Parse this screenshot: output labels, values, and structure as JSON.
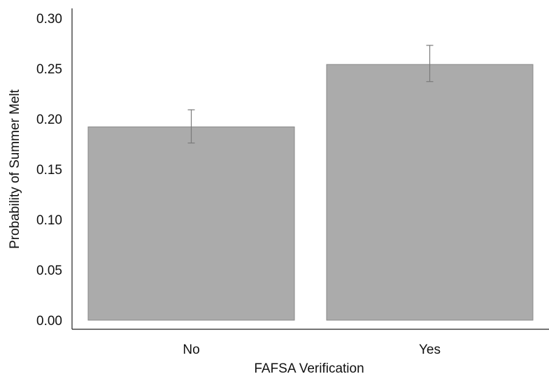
{
  "chart_data": {
    "type": "bar",
    "title": "",
    "xlabel": "FAFSA Verification",
    "ylabel": "Probability of Summer Melt",
    "categories": [
      "No",
      "Yes"
    ],
    "values": [
      0.192,
      0.254
    ],
    "error_bars": [
      {
        "low": 0.176,
        "high": 0.209
      },
      {
        "low": 0.237,
        "high": 0.273
      }
    ],
    "ylim": [
      0,
      0.3
    ],
    "yticks": [
      "0.00",
      "0.05",
      "0.10",
      "0.15",
      "0.20",
      "0.25",
      "0.30"
    ],
    "grid": false,
    "legend": "none",
    "colors": {
      "bar_fill": "#ababab",
      "bar_stroke": "#8a8a8a",
      "error_bar": "#7a7a7a",
      "axis": "#222222"
    }
  }
}
